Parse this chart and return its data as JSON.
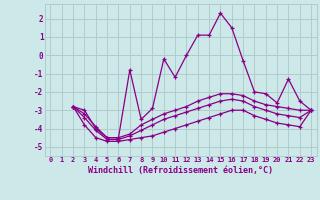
{
  "xlabel": "Windchill (Refroidissement éolien,°C)",
  "background_color": "#cde8e8",
  "grid_color": "#b0cccc",
  "line_color": "#880088",
  "xlim": [
    -0.5,
    23.5
  ],
  "ylim": [
    -5.5,
    2.8
  ],
  "xticks": [
    0,
    1,
    2,
    3,
    4,
    5,
    6,
    7,
    8,
    9,
    10,
    11,
    12,
    13,
    14,
    15,
    16,
    17,
    18,
    19,
    20,
    21,
    22,
    23
  ],
  "yticks": [
    -5,
    -4,
    -3,
    -2,
    -1,
    0,
    1,
    2
  ],
  "series": [
    [
      null,
      null,
      -2.8,
      -3.0,
      -4.0,
      -4.5,
      -4.5,
      -0.8,
      -3.5,
      -2.9,
      -0.2,
      -1.2,
      0.0,
      1.1,
      1.1,
      2.3,
      1.5,
      -0.3,
      -2.0,
      -2.1,
      -2.6,
      -1.3,
      -2.5,
      -3.0
    ],
    [
      null,
      null,
      -2.8,
      -3.2,
      -3.9,
      -4.5,
      -4.5,
      -4.3,
      -3.8,
      -3.5,
      -3.2,
      -3.0,
      -2.8,
      -2.5,
      -2.3,
      -2.1,
      -2.1,
      -2.2,
      -2.5,
      -2.7,
      -2.8,
      -2.9,
      -3.0,
      -3.0
    ],
    [
      null,
      null,
      -2.8,
      -3.4,
      -4.1,
      -4.6,
      -4.6,
      -4.4,
      -4.1,
      -3.8,
      -3.5,
      -3.3,
      -3.1,
      -2.9,
      -2.7,
      -2.5,
      -2.4,
      -2.5,
      -2.8,
      -3.0,
      -3.2,
      -3.3,
      -3.4,
      -3.0
    ],
    [
      null,
      null,
      -2.8,
      -3.8,
      -4.5,
      -4.7,
      -4.7,
      -4.6,
      -4.5,
      -4.4,
      -4.2,
      -4.0,
      -3.8,
      -3.6,
      -3.4,
      -3.2,
      -3.0,
      -3.0,
      -3.3,
      -3.5,
      -3.7,
      -3.8,
      -3.9,
      -3.0
    ]
  ]
}
